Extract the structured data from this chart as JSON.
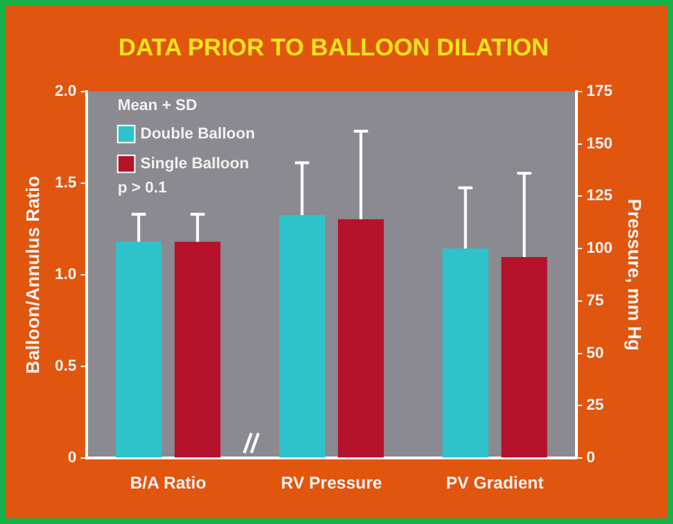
{
  "chart_data": {
    "type": "bar",
    "title": "DATA PRIOR TO BALLOON DILATION",
    "ylabel": "Balloon/Annulus Ratio",
    "y2label": "Pressure, mm Hg",
    "categories": [
      "B/A Ratio",
      "RV Pressure",
      "PV Gradient"
    ],
    "series": [
      {
        "name": "Double Balloon",
        "color": "#2ec3cb",
        "values": [
          1.18,
          null,
          null
        ],
        "errors": [
          [
            1.18,
            1.33
          ],
          null,
          null
        ]
      },
      {
        "name": "Single Balloon",
        "color": "#b5132b",
        "values": [
          1.18,
          null,
          null
        ],
        "errors": [
          [
            1.18,
            1.33
          ],
          null,
          null
        ]
      },
      {
        "color": "#2ec3cb",
        "axis": "y2",
        "values": [
          null,
          116,
          100
        ],
        "errors": [
          null,
          [
            116,
            141
          ],
          [
            100,
            129
          ]
        ]
      },
      {
        "color": "#b5132b",
        "axis": "y2",
        "values": [
          null,
          114,
          96
        ],
        "errors": [
          null,
          [
            114,
            156
          ],
          [
            96,
            136
          ]
        ]
      }
    ],
    "ylim": [
      0,
      2
    ],
    "yticks": [
      0,
      {
        "value": 0.5,
        "label": "0.5"
      },
      {
        "value": 1,
        "label": "1.0"
      },
      {
        "value": 1.5,
        "label": "1.5"
      },
      {
        "value": 2,
        "label": "2.0"
      }
    ],
    "y2lim": [
      0,
      175
    ],
    "y2ticks": [
      0,
      25,
      50,
      75,
      100,
      125,
      150,
      175
    ],
    "legend": "top left",
    "annotations": [
      "Mean + SD",
      "p > 0.1"
    ]
  }
}
